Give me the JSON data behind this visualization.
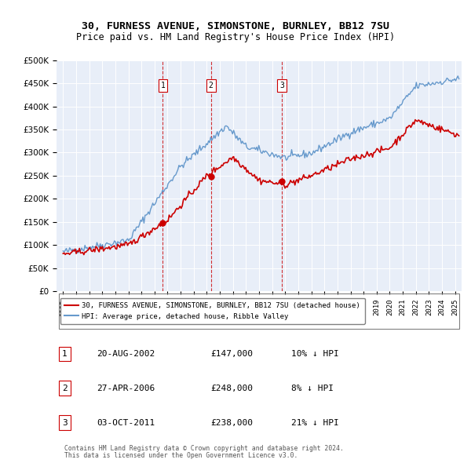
{
  "title1": "30, FURNESS AVENUE, SIMONSTONE, BURNLEY, BB12 7SU",
  "title2": "Price paid vs. HM Land Registry's House Price Index (HPI)",
  "legend1": "30, FURNESS AVENUE, SIMONSTONE, BURNLEY, BB12 7SU (detached house)",
  "legend2": "HPI: Average price, detached house, Ribble Valley",
  "footer1": "Contains HM Land Registry data © Crown copyright and database right 2024.",
  "footer2": "This data is licensed under the Open Government Licence v3.0.",
  "sales": [
    {
      "num": 1,
      "date": "20-AUG-2002",
      "price": 147000,
      "pct": "10%",
      "dir": "↓"
    },
    {
      "num": 2,
      "date": "27-APR-2006",
      "price": 248000,
      "pct": "8%",
      "dir": "↓"
    },
    {
      "num": 3,
      "date": "03-OCT-2011",
      "price": 238000,
      "pct": "21%",
      "dir": "↓"
    }
  ],
  "sale_years": [
    2002.64,
    2006.32,
    2011.75
  ],
  "sale_prices": [
    147000,
    248000,
    238000
  ],
  "vline_color": "#cc0000",
  "sale_line_color": "#cc0000",
  "hpi_line_color": "#6699cc",
  "background_color": "#e8eef8",
  "plot_bg": "#e8eef8",
  "ylim": [
    0,
    500000
  ],
  "yticks": [
    0,
    50000,
    100000,
    150000,
    200000,
    250000,
    300000,
    350000,
    400000,
    450000,
    500000
  ],
  "xlim_start": 1994.5,
  "xlim_end": 2025.5
}
